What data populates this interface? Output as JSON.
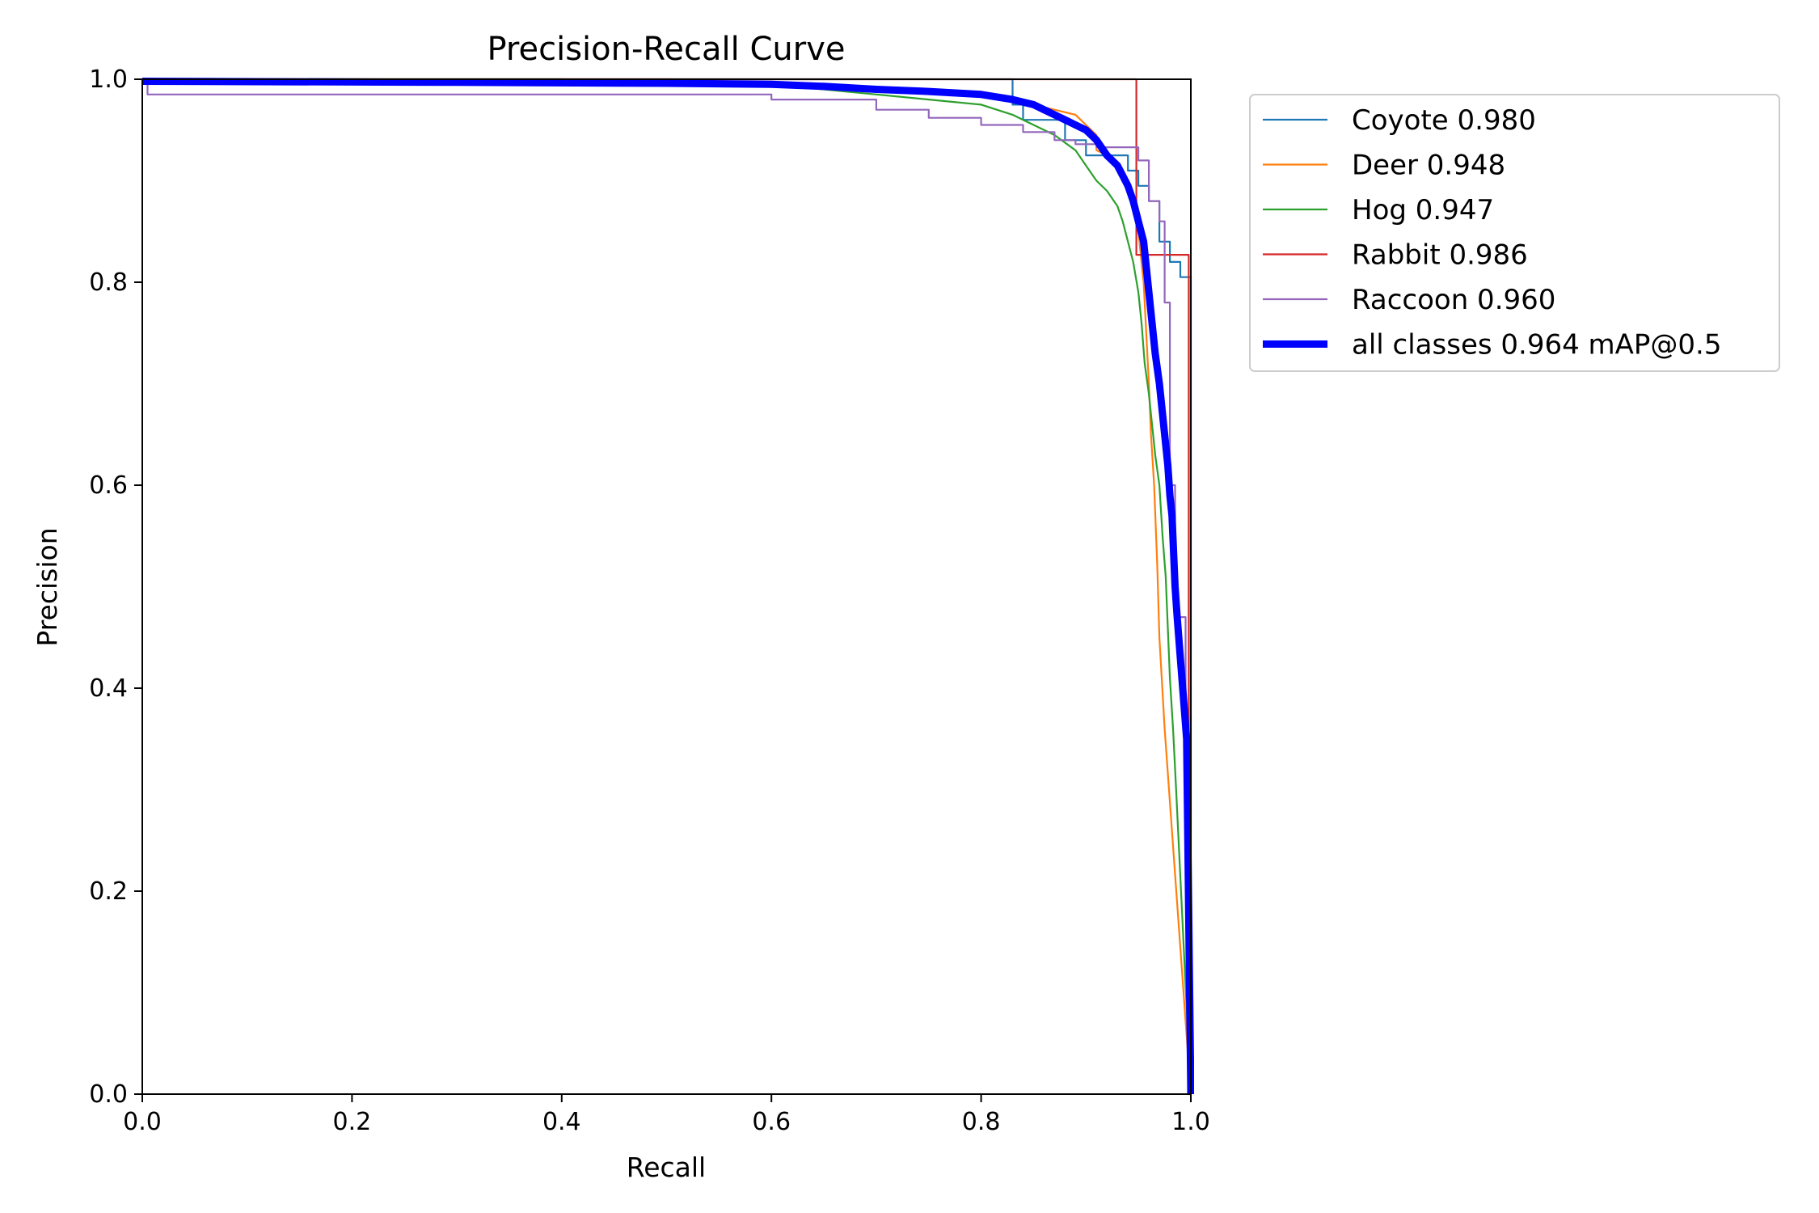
{
  "chart_data": {
    "type": "line",
    "title": "Precision-Recall Curve",
    "xlabel": "Recall",
    "ylabel": "Precision",
    "xlim": [
      0,
      1
    ],
    "ylim": [
      0,
      1
    ],
    "xticks": [
      "0.0",
      "0.2",
      "0.4",
      "0.6",
      "0.8",
      "1.0"
    ],
    "yticks": [
      "0.0",
      "0.2",
      "0.4",
      "0.6",
      "0.8",
      "1.0"
    ],
    "grid": false,
    "legend_position": "outside-top-right",
    "series": [
      {
        "name": "Coyote 0.980",
        "color": "#1f77b4",
        "x": [
          0,
          0.83,
          0.83,
          0.84,
          0.84,
          0.88,
          0.88,
          0.9,
          0.9,
          0.94,
          0.94,
          0.95,
          0.95,
          0.96,
          0.96,
          0.97,
          0.97,
          0.98,
          0.98,
          0.99,
          0.99,
          1.0,
          1.0
        ],
        "y": [
          1.0,
          1.0,
          0.975,
          0.975,
          0.96,
          0.96,
          0.94,
          0.94,
          0.925,
          0.925,
          0.91,
          0.91,
          0.895,
          0.895,
          0.88,
          0.88,
          0.84,
          0.84,
          0.82,
          0.82,
          0.805,
          0.805,
          0.0
        ]
      },
      {
        "name": "Deer 0.948",
        "color": "#ff7f0e",
        "x": [
          0,
          0.5,
          0.65,
          0.75,
          0.8,
          0.85,
          0.87,
          0.89,
          0.9,
          0.91,
          0.91,
          0.92,
          0.93,
          0.94,
          0.945,
          0.95,
          0.955,
          0.96,
          0.962,
          0.965,
          0.968,
          0.97,
          0.975,
          1.0
        ],
        "y": [
          1.0,
          1.0,
          0.995,
          0.99,
          0.985,
          0.975,
          0.97,
          0.965,
          0.955,
          0.945,
          0.93,
          0.925,
          0.915,
          0.9,
          0.88,
          0.85,
          0.8,
          0.7,
          0.65,
          0.6,
          0.52,
          0.45,
          0.36,
          0.0
        ]
      },
      {
        "name": "Hog 0.947",
        "color": "#2ca02c",
        "x": [
          0,
          0.4,
          0.6,
          0.7,
          0.75,
          0.8,
          0.83,
          0.85,
          0.87,
          0.89,
          0.9,
          0.91,
          0.92,
          0.93,
          0.935,
          0.94,
          0.945,
          0.95,
          0.953,
          0.956,
          0.96,
          0.963,
          0.966,
          0.97,
          0.973,
          0.976,
          0.978,
          0.98,
          0.983,
          0.986,
          1.0
        ],
        "y": [
          1.0,
          1.0,
          0.995,
          0.985,
          0.98,
          0.975,
          0.965,
          0.955,
          0.945,
          0.93,
          0.915,
          0.9,
          0.89,
          0.875,
          0.86,
          0.84,
          0.82,
          0.79,
          0.76,
          0.72,
          0.69,
          0.66,
          0.63,
          0.6,
          0.55,
          0.51,
          0.46,
          0.41,
          0.36,
          0.3,
          0.0
        ]
      },
      {
        "name": "Rabbit 0.986",
        "color": "#d62728",
        "x": [
          0,
          0.948,
          0.948,
          0.998,
          0.998,
          1.0
        ],
        "y": [
          1.0,
          1.0,
          0.827,
          0.827,
          0.0,
          0.0
        ]
      },
      {
        "name": "Raccoon 0.960",
        "color": "#9467bd",
        "x": [
          0,
          0.005,
          0.005,
          0.6,
          0.6,
          0.7,
          0.7,
          0.75,
          0.75,
          0.8,
          0.8,
          0.84,
          0.84,
          0.87,
          0.87,
          0.89,
          0.89,
          0.91,
          0.91,
          0.95,
          0.95,
          0.96,
          0.96,
          0.97,
          0.97,
          0.975,
          0.975,
          0.98,
          0.98,
          0.985,
          0.985,
          0.995,
          0.995,
          1.0
        ],
        "y": [
          1.0,
          1.0,
          0.985,
          0.985,
          0.98,
          0.98,
          0.97,
          0.97,
          0.962,
          0.962,
          0.955,
          0.955,
          0.948,
          0.948,
          0.94,
          0.94,
          0.936,
          0.936,
          0.933,
          0.933,
          0.92,
          0.92,
          0.88,
          0.88,
          0.86,
          0.86,
          0.78,
          0.78,
          0.6,
          0.6,
          0.47,
          0.47,
          0.33,
          0.0
        ]
      },
      {
        "name": "all classes 0.964 mAP@0.5",
        "color": "#0000ff",
        "thick": true,
        "x": [
          0,
          0.3,
          0.5,
          0.6,
          0.65,
          0.7,
          0.75,
          0.8,
          0.83,
          0.85,
          0.86,
          0.87,
          0.88,
          0.89,
          0.9,
          0.91,
          0.92,
          0.93,
          0.935,
          0.94,
          0.945,
          0.95,
          0.955,
          0.958,
          0.96,
          0.963,
          0.966,
          0.97,
          0.972,
          0.975,
          0.978,
          0.98,
          0.982,
          0.985,
          0.987,
          0.99,
          0.993,
          0.996,
          1.0
        ],
        "y": [
          0.998,
          0.997,
          0.996,
          0.995,
          0.993,
          0.99,
          0.988,
          0.985,
          0.98,
          0.975,
          0.97,
          0.965,
          0.96,
          0.955,
          0.95,
          0.94,
          0.925,
          0.915,
          0.905,
          0.895,
          0.88,
          0.86,
          0.84,
          0.81,
          0.79,
          0.76,
          0.73,
          0.7,
          0.68,
          0.65,
          0.62,
          0.59,
          0.57,
          0.5,
          0.47,
          0.43,
          0.39,
          0.35,
          0.0
        ]
      }
    ]
  }
}
